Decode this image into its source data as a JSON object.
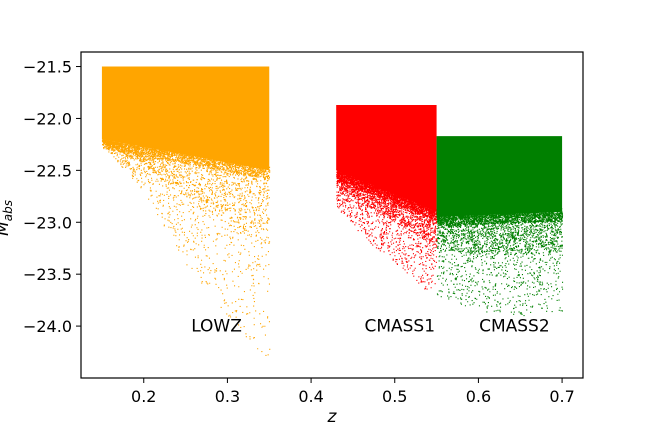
{
  "chart_data": {
    "type": "scatter",
    "xlabel": "z",
    "ylabel": "M_abs",
    "xlim": [
      0.125,
      0.725
    ],
    "ylim": [
      -21.36,
      -24.5
    ],
    "y_inverted": true,
    "grid": false,
    "x_ticks": [
      {
        "value": 0.2,
        "label": "0.2"
      },
      {
        "value": 0.3,
        "label": "0.3"
      },
      {
        "value": 0.4,
        "label": "0.4"
      },
      {
        "value": 0.5,
        "label": "0.5"
      },
      {
        "value": 0.6,
        "label": "0.6"
      },
      {
        "value": 0.7,
        "label": "0.7"
      }
    ],
    "y_ticks": [
      {
        "value": -21.5,
        "label": "−21.5"
      },
      {
        "value": -22.0,
        "label": "−22.0"
      },
      {
        "value": -22.5,
        "label": "−22.5"
      },
      {
        "value": -23.0,
        "label": "−23.0"
      },
      {
        "value": -23.5,
        "label": "−23.5"
      },
      {
        "value": -24.0,
        "label": "−24.0"
      }
    ],
    "series": [
      {
        "name": "LOWZ",
        "color": "#ffa500",
        "z_range": [
          0.15,
          0.35
        ],
        "mabs_faint_limit": -21.5,
        "dense_top_at_z": [
          [
            0.15,
            -22.2
          ],
          [
            0.35,
            -22.5
          ]
        ],
        "upper_envelope_at_z": [
          [
            0.15,
            -22.25
          ],
          [
            0.2,
            -22.7
          ],
          [
            0.25,
            -23.4
          ],
          [
            0.3,
            -23.9
          ],
          [
            0.35,
            -24.35
          ]
        ],
        "approx_points": 14000
      },
      {
        "name": "CMASS1",
        "color": "#ff0000",
        "z_range": [
          0.43,
          0.55
        ],
        "mabs_faint_limit": -21.87,
        "dense_top_at_z": [
          [
            0.43,
            -22.5
          ],
          [
            0.55,
            -22.9
          ]
        ],
        "upper_envelope_at_z": [
          [
            0.43,
            -22.85
          ],
          [
            0.47,
            -23.2
          ],
          [
            0.51,
            -23.45
          ],
          [
            0.55,
            -23.75
          ]
        ],
        "approx_points": 11000
      },
      {
        "name": "CMASS2",
        "color": "#008000",
        "z_range": [
          0.55,
          0.7
        ],
        "mabs_faint_limit": -22.17,
        "dense_top_at_z": [
          [
            0.55,
            -22.95
          ],
          [
            0.7,
            -22.9
          ]
        ],
        "upper_envelope_at_z": [
          [
            0.55,
            -23.7
          ],
          [
            0.6,
            -23.85
          ],
          [
            0.65,
            -23.9
          ],
          [
            0.7,
            -23.85
          ]
        ],
        "approx_points": 11000
      }
    ],
    "annotations": [
      {
        "text": "LOWZ",
        "x": 0.287,
        "y": -24.05
      },
      {
        "text": "CMASS1",
        "x": 0.506,
        "y": -24.05
      },
      {
        "text": "CMASS2",
        "x": 0.643,
        "y": -24.05
      }
    ]
  }
}
